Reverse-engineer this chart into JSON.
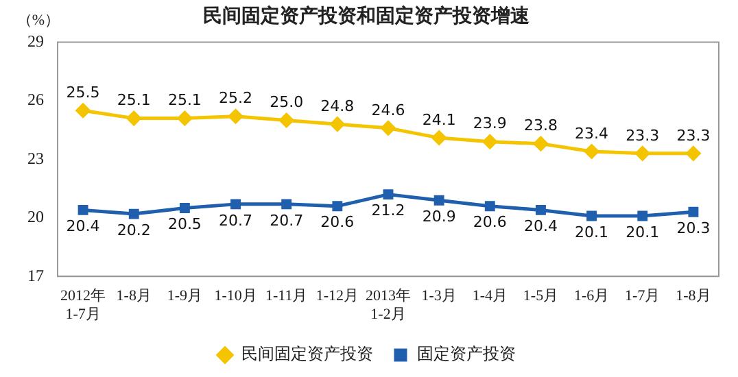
{
  "chart_data": {
    "type": "line",
    "title": "民间固定资产投资和固定资产投资增速",
    "ylabel": "（%）",
    "categories": [
      "2012年\n1-7月",
      "1-8月",
      "1-9月",
      "1-10月",
      "1-11月",
      "1-12月",
      "2013年\n1-2月",
      "1-3月",
      "1-4月",
      "1-5月",
      "1-6月",
      "1-7月",
      "1-8月"
    ],
    "series": [
      {
        "name": "民间固定资产投资",
        "color": "#f5c400",
        "marker": "diamond",
        "values": [
          25.5,
          25.1,
          25.1,
          25.2,
          25.0,
          24.8,
          24.6,
          24.1,
          23.9,
          23.8,
          23.4,
          23.3,
          23.3
        ],
        "value_labels": [
          "25.5",
          "25.1",
          "25.1",
          "25.2",
          "25.0",
          "24.8",
          "24.6",
          "24.1",
          "23.9",
          "23.8",
          "23.4",
          "23.3",
          "23.3"
        ]
      },
      {
        "name": "固定资产投资",
        "color": "#1f5fae",
        "marker": "square",
        "values": [
          20.4,
          20.2,
          20.5,
          20.7,
          20.7,
          20.6,
          21.2,
          20.9,
          20.6,
          20.4,
          20.1,
          20.1,
          20.3
        ],
        "value_labels": [
          "20.4",
          "20.2",
          "20.5",
          "20.7",
          "20.7",
          "20.6",
          "21.2",
          "20.9",
          "20.6",
          "20.4",
          "20.1",
          "20.1",
          "20.3"
        ]
      }
    ],
    "ylim": [
      17,
      29
    ],
    "yticks": [
      17,
      20,
      23,
      26,
      29
    ],
    "grid": false,
    "legend": "bottom"
  }
}
